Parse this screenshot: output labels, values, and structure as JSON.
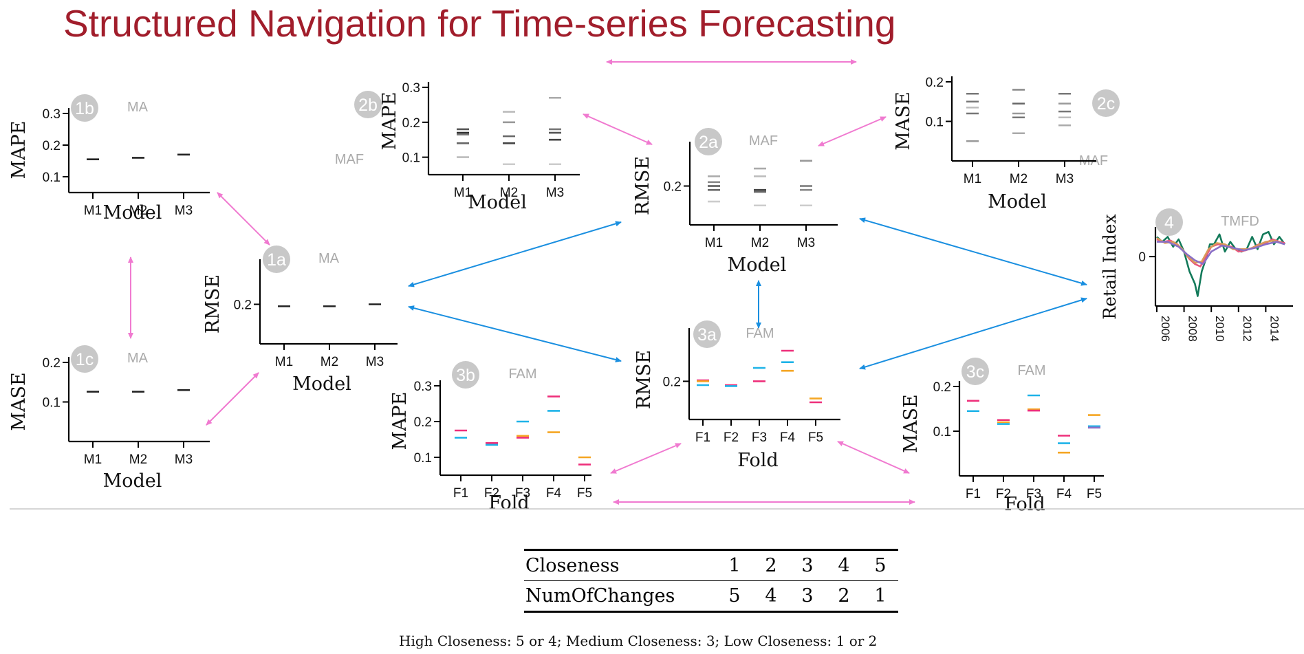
{
  "title": "Structured Navigation for Time-series Forecasting",
  "colors": {
    "title": "#a11d2b",
    "pink_arrow": "#f07ad0",
    "blue_arrow": "#1a8fe0",
    "badge": "#c8c8c8",
    "tag": "#aaaaaa",
    "fold_series": [
      "#ee2f7a",
      "#1eb3e8",
      "#f5a623"
    ],
    "retail_series": [
      "#137a5a",
      "#e8567c",
      "#d99a5a",
      "#8a6fc6"
    ]
  },
  "panels": [
    {
      "id": "1b",
      "tag": "MA",
      "ylabel": "MAPE",
      "yticks": [
        "0.3",
        "0.2",
        "0.1"
      ],
      "xlabel": "Model",
      "xticks": [
        "M1",
        "M2",
        "M3"
      ],
      "ymin": 0.05,
      "ymax": 0.3,
      "marks": [
        [
          {
            "v": 0.155,
            "c": "#222"
          }
        ],
        [
          {
            "v": 0.16,
            "c": "#222"
          }
        ],
        [
          {
            "v": 0.17,
            "c": "#222"
          }
        ]
      ]
    },
    {
      "id": "1c",
      "tag": "MA",
      "ylabel": "MASE",
      "yticks": [
        "0.2",
        "0.1"
      ],
      "xlabel": "Model",
      "xticks": [
        "M1",
        "M2",
        "M3"
      ],
      "ymin": 0.0,
      "ymax": 0.2,
      "marks": [
        [
          {
            "v": 0.126,
            "c": "#222"
          }
        ],
        [
          {
            "v": 0.126,
            "c": "#222"
          }
        ],
        [
          {
            "v": 0.13,
            "c": "#222"
          }
        ]
      ]
    },
    {
      "id": "1a",
      "tag": "MA",
      "ylabel": "RMSE",
      "yticks": [
        "0.2"
      ],
      "xlabel": "Model",
      "xticks": [
        "M1",
        "M2",
        "M3"
      ],
      "ymin": 0.0,
      "ymax": 0.4,
      "marks": [
        [
          {
            "v": 0.19,
            "c": "#222"
          }
        ],
        [
          {
            "v": 0.19,
            "c": "#222"
          }
        ],
        [
          {
            "v": 0.2,
            "c": "#222"
          }
        ]
      ]
    },
    {
      "id": "2b",
      "tag": "MAF",
      "ylabel": "MAPE",
      "yticks": [
        "0.3",
        "0.2",
        "0.1"
      ],
      "xlabel": "Model",
      "xticks": [
        "M1",
        "M2",
        "M3"
      ],
      "ymin": 0.05,
      "ymax": 0.3,
      "marks": [
        [
          {
            "v": 0.18,
            "c": "#555"
          },
          {
            "v": 0.17,
            "c": "#333"
          },
          {
            "v": 0.165,
            "c": "#777"
          },
          {
            "v": 0.14,
            "c": "#666"
          },
          {
            "v": 0.1,
            "c": "#bbb"
          }
        ],
        [
          {
            "v": 0.23,
            "c": "#bbb"
          },
          {
            "v": 0.2,
            "c": "#999"
          },
          {
            "v": 0.16,
            "c": "#666"
          },
          {
            "v": 0.14,
            "c": "#444"
          },
          {
            "v": 0.08,
            "c": "#ccc"
          }
        ],
        [
          {
            "v": 0.27,
            "c": "#aaa"
          },
          {
            "v": 0.18,
            "c": "#777"
          },
          {
            "v": 0.17,
            "c": "#555"
          },
          {
            "v": 0.15,
            "c": "#444"
          },
          {
            "v": 0.08,
            "c": "#ccc"
          }
        ]
      ]
    },
    {
      "id": "2a",
      "tag": "MAF",
      "ylabel": "RMSE",
      "yticks": [
        "0.2"
      ],
      "xlabel": "Model",
      "xticks": [
        "M1",
        "M2",
        "M3"
      ],
      "ymin": 0.0,
      "ymax": 0.4,
      "marks": [
        [
          {
            "v": 0.25,
            "c": "#aaa"
          },
          {
            "v": 0.22,
            "c": "#888"
          },
          {
            "v": 0.2,
            "c": "#555"
          },
          {
            "v": 0.18,
            "c": "#666"
          },
          {
            "v": 0.12,
            "c": "#ccc"
          }
        ],
        [
          {
            "v": 0.29,
            "c": "#aaa"
          },
          {
            "v": 0.25,
            "c": "#bbb"
          },
          {
            "v": 0.18,
            "c": "#444"
          },
          {
            "v": 0.17,
            "c": "#666"
          },
          {
            "v": 0.1,
            "c": "#ccc"
          }
        ],
        [
          {
            "v": 0.33,
            "c": "#999"
          },
          {
            "v": 0.2,
            "c": "#777"
          },
          {
            "v": 0.18,
            "c": "#888"
          },
          {
            "v": 0.1,
            "c": "#ccc"
          }
        ]
      ]
    },
    {
      "id": "2c",
      "tag": "MAF",
      "ylabel": "MASE",
      "yticks": [
        "0.2",
        "0.1"
      ],
      "xlabel": "Model",
      "xticks": [
        "M1",
        "M2",
        "M3"
      ],
      "ymin": 0.0,
      "ymax": 0.2,
      "marks": [
        [
          {
            "v": 0.17,
            "c": "#777"
          },
          {
            "v": 0.15,
            "c": "#777"
          },
          {
            "v": 0.135,
            "c": "#bbb"
          },
          {
            "v": 0.12,
            "c": "#777"
          },
          {
            "v": 0.05,
            "c": "#999"
          }
        ],
        [
          {
            "v": 0.18,
            "c": "#888"
          },
          {
            "v": 0.145,
            "c": "#666"
          },
          {
            "v": 0.12,
            "c": "#999"
          },
          {
            "v": 0.11,
            "c": "#777"
          },
          {
            "v": 0.07,
            "c": "#aaa"
          }
        ],
        [
          {
            "v": 0.17,
            "c": "#777"
          },
          {
            "v": 0.145,
            "c": "#999"
          },
          {
            "v": 0.125,
            "c": "#777"
          },
          {
            "v": 0.11,
            "c": "#bbb"
          },
          {
            "v": 0.09,
            "c": "#aaa"
          }
        ]
      ]
    },
    {
      "id": "3b",
      "tag": "FAM",
      "ylabel": "MAPE",
      "yticks": [
        "0.3",
        "0.2",
        "0.1"
      ],
      "xlabel": "Fold",
      "xticks": [
        "F1",
        "F2",
        "F3",
        "F4",
        "F5"
      ],
      "ymin": 0.05,
      "ymax": 0.3,
      "marks": [
        [
          {
            "v": 0.175,
            "c": "#ee2f7a"
          },
          {
            "v": 0.155,
            "c": "#1eb3e8"
          }
        ],
        [
          {
            "v": 0.14,
            "c": "#ee2f7a"
          },
          {
            "v": 0.135,
            "c": "#1eb3e8"
          }
        ],
        [
          {
            "v": 0.2,
            "c": "#1eb3e8"
          },
          {
            "v": 0.16,
            "c": "#f5a623"
          },
          {
            "v": 0.155,
            "c": "#ee2f7a"
          }
        ],
        [
          {
            "v": 0.27,
            "c": "#ee2f7a"
          },
          {
            "v": 0.23,
            "c": "#1eb3e8"
          },
          {
            "v": 0.17,
            "c": "#f5a623"
          }
        ],
        [
          {
            "v": 0.1,
            "c": "#f5a623"
          },
          {
            "v": 0.08,
            "c": "#ee2f7a"
          }
        ]
      ]
    },
    {
      "id": "3a",
      "tag": "FAM",
      "ylabel": "RMSE",
      "yticks": [
        "0.2"
      ],
      "xlabel": "Fold",
      "xticks": [
        "F1",
        "F2",
        "F3",
        "F4",
        "F5"
      ],
      "ymin": 0.0,
      "ymax": 0.45,
      "marks": [
        [
          {
            "v": 0.205,
            "c": "#ee2f7a"
          },
          {
            "v": 0.2,
            "c": "#f5a623"
          },
          {
            "v": 0.18,
            "c": "#1eb3e8"
          }
        ],
        [
          {
            "v": 0.18,
            "c": "#ee2f7a"
          },
          {
            "v": 0.175,
            "c": "#1eb3e8"
          }
        ],
        [
          {
            "v": 0.27,
            "c": "#1eb3e8"
          },
          {
            "v": 0.2,
            "c": "#ee2f7a"
          }
        ],
        [
          {
            "v": 0.36,
            "c": "#ee2f7a"
          },
          {
            "v": 0.3,
            "c": "#1eb3e8"
          },
          {
            "v": 0.255,
            "c": "#f5a623"
          }
        ],
        [
          {
            "v": 0.11,
            "c": "#f5a623"
          },
          {
            "v": 0.09,
            "c": "#ee2f7a"
          }
        ]
      ]
    },
    {
      "id": "3c",
      "tag": "FAM",
      "ylabel": "MASE",
      "yticks": [
        "0.2",
        "0.1"
      ],
      "xlabel": "Fold",
      "xticks": [
        "F1",
        "F2",
        "F3",
        "F4",
        "F5"
      ],
      "ymin": 0.0,
      "ymax": 0.2,
      "marks": [
        [
          {
            "v": 0.168,
            "c": "#ee2f7a"
          },
          {
            "v": 0.145,
            "c": "#1eb3e8"
          }
        ],
        [
          {
            "v": 0.125,
            "c": "#ee2f7a"
          },
          {
            "v": 0.12,
            "c": "#f5a623"
          },
          {
            "v": 0.116,
            "c": "#1eb3e8"
          }
        ],
        [
          {
            "v": 0.18,
            "c": "#1eb3e8"
          },
          {
            "v": 0.149,
            "c": "#f5a623"
          },
          {
            "v": 0.146,
            "c": "#ee2f7a"
          }
        ],
        [
          {
            "v": 0.09,
            "c": "#ee2f7a"
          },
          {
            "v": 0.073,
            "c": "#1eb3e8"
          },
          {
            "v": 0.052,
            "c": "#f5a623"
          }
        ],
        [
          {
            "v": 0.136,
            "c": "#f5a623"
          },
          {
            "v": 0.111,
            "c": "#1eb3e8"
          },
          {
            "v": 0.108,
            "c": "#8a6fc6"
          }
        ]
      ]
    }
  ],
  "retail": {
    "id": "4",
    "tag": "TMFD",
    "ylabel": "Retail Index",
    "ytick": "0",
    "xticks": [
      "2006",
      "2008",
      "2010",
      "2012",
      "2014"
    ],
    "xmin": 2005.9,
    "xmax": 2016.0,
    "ymin": -2.0,
    "ymax": 1.2,
    "series": [
      {
        "color": "#137a5a",
        "points": [
          [
            2006.0,
            0.8
          ],
          [
            2006.4,
            0.6
          ],
          [
            2006.8,
            0.8
          ],
          [
            2007.2,
            0.4
          ],
          [
            2007.6,
            0.7
          ],
          [
            2008.0,
            0.2
          ],
          [
            2008.4,
            -0.6
          ],
          [
            2008.8,
            -1.1
          ],
          [
            2009.0,
            -1.6
          ],
          [
            2009.3,
            -0.6
          ],
          [
            2009.6,
            -0.1
          ],
          [
            2009.9,
            0.5
          ],
          [
            2010.2,
            0.5
          ],
          [
            2010.6,
            0.9
          ],
          [
            2011.0,
            0.2
          ],
          [
            2011.4,
            0.6
          ],
          [
            2011.8,
            0.3
          ],
          [
            2012.2,
            0.2
          ],
          [
            2012.6,
            0.3
          ],
          [
            2013.0,
            0.8
          ],
          [
            2013.4,
            0.3
          ],
          [
            2013.8,
            0.9
          ],
          [
            2014.2,
            1.0
          ],
          [
            2014.6,
            0.5
          ],
          [
            2015.0,
            0.8
          ],
          [
            2015.4,
            0.5
          ]
        ]
      },
      {
        "color": "#e8567c",
        "points": [
          [
            2006.0,
            0.7
          ],
          [
            2006.5,
            0.6
          ],
          [
            2007.0,
            0.65
          ],
          [
            2007.5,
            0.5
          ],
          [
            2008.0,
            0.2
          ],
          [
            2008.4,
            -0.1
          ],
          [
            2008.8,
            -0.3
          ],
          [
            2009.2,
            -0.4
          ],
          [
            2009.6,
            0.0
          ],
          [
            2010.0,
            0.4
          ],
          [
            2010.5,
            0.5
          ],
          [
            2011.0,
            0.45
          ],
          [
            2011.5,
            0.4
          ],
          [
            2012.0,
            0.2
          ],
          [
            2012.5,
            0.25
          ],
          [
            2013.0,
            0.35
          ],
          [
            2013.5,
            0.5
          ],
          [
            2014.0,
            0.55
          ],
          [
            2014.5,
            0.7
          ],
          [
            2015.0,
            0.6
          ],
          [
            2015.4,
            0.55
          ]
        ]
      },
      {
        "color": "#d99a5a",
        "points": [
          [
            2006.0,
            0.75
          ],
          [
            2006.6,
            0.55
          ],
          [
            2007.2,
            0.6
          ],
          [
            2007.8,
            0.35
          ],
          [
            2008.3,
            0.0
          ],
          [
            2008.8,
            -0.25
          ],
          [
            2009.3,
            -0.2
          ],
          [
            2009.8,
            0.3
          ],
          [
            2010.4,
            0.55
          ],
          [
            2011.0,
            0.5
          ],
          [
            2011.6,
            0.3
          ],
          [
            2012.2,
            0.3
          ],
          [
            2012.8,
            0.3
          ],
          [
            2013.4,
            0.45
          ],
          [
            2014.0,
            0.6
          ],
          [
            2014.6,
            0.65
          ],
          [
            2015.2,
            0.55
          ]
        ]
      },
      {
        "color": "#8a6fc6",
        "points": [
          [
            2006.0,
            0.6
          ],
          [
            2006.8,
            0.6
          ],
          [
            2007.6,
            0.4
          ],
          [
            2008.2,
            0.1
          ],
          [
            2008.8,
            -0.15
          ],
          [
            2009.4,
            -0.3
          ],
          [
            2010.0,
            0.2
          ],
          [
            2010.8,
            0.45
          ],
          [
            2011.6,
            0.35
          ],
          [
            2012.4,
            0.25
          ],
          [
            2013.2,
            0.35
          ],
          [
            2014.0,
            0.5
          ],
          [
            2014.8,
            0.6
          ],
          [
            2015.4,
            0.5
          ]
        ]
      }
    ]
  },
  "table": {
    "rows": [
      {
        "label": "Closeness",
        "values": [
          "1",
          "2",
          "3",
          "4",
          "5"
        ]
      },
      {
        "label": "NumOfChanges",
        "values": [
          "5",
          "4",
          "3",
          "2",
          "1"
        ]
      }
    ]
  },
  "caption": "High Closeness: 5 or 4; Medium Closeness: 3; Low Closeness: 1 or 2"
}
